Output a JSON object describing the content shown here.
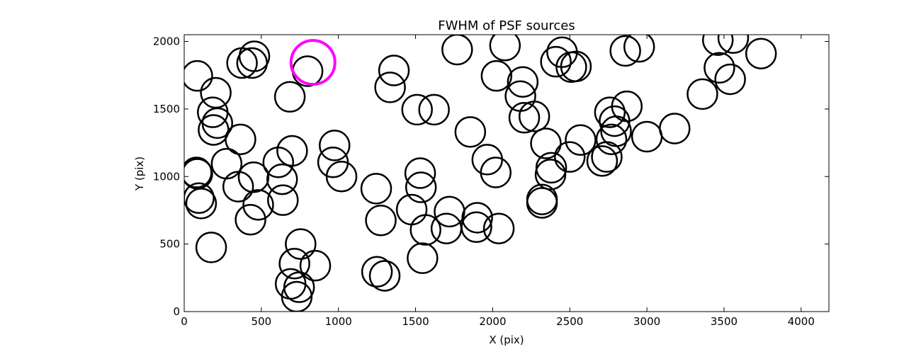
{
  "chart_data": {
    "type": "scatter",
    "title": "FWHM of PSF sources",
    "xlabel": "X (pix)",
    "ylabel": "Y (pix)",
    "xlim": [
      0,
      4180
    ],
    "ylim": [
      0,
      2050
    ],
    "xticks": [
      0,
      500,
      1000,
      1500,
      2000,
      2500,
      3000,
      3500,
      4000
    ],
    "yticks": [
      0,
      500,
      1000,
      1500,
      2000
    ],
    "grid": false,
    "marker": "open-circle",
    "series": [
      {
        "color": "#000000",
        "points": [
          [
            85,
            1745
          ],
          [
            205,
            1620
          ],
          [
            375,
            1840
          ],
          [
            440,
            1840
          ],
          [
            455,
            1890
          ],
          [
            685,
            1590
          ],
          [
            800,
            1780
          ],
          [
            185,
            1475
          ],
          [
            215,
            1395
          ],
          [
            190,
            1345
          ],
          [
            365,
            1275
          ],
          [
            275,
            1095
          ],
          [
            80,
            1030
          ],
          [
            85,
            1020
          ],
          [
            95,
            840
          ],
          [
            110,
            800
          ],
          [
            175,
            475
          ],
          [
            350,
            925
          ],
          [
            450,
            995
          ],
          [
            480,
            790
          ],
          [
            430,
            680
          ],
          [
            610,
            1105
          ],
          [
            635,
            980
          ],
          [
            640,
            825
          ],
          [
            700,
            1190
          ],
          [
            755,
            500
          ],
          [
            715,
            355
          ],
          [
            690,
            205
          ],
          [
            745,
            180
          ],
          [
            730,
            110
          ],
          [
            850,
            340
          ],
          [
            975,
            1230
          ],
          [
            965,
            1105
          ],
          [
            1020,
            1000
          ],
          [
            1245,
            910
          ],
          [
            1275,
            675
          ],
          [
            1250,
            295
          ],
          [
            1300,
            265
          ],
          [
            1335,
            1660
          ],
          [
            1360,
            1785
          ],
          [
            1510,
            1495
          ],
          [
            1530,
            1025
          ],
          [
            1535,
            920
          ],
          [
            1475,
            755
          ],
          [
            1565,
            605
          ],
          [
            1545,
            395
          ],
          [
            1620,
            1495
          ],
          [
            1700,
            615
          ],
          [
            1720,
            740
          ],
          [
            1770,
            1940
          ],
          [
            1855,
            1330
          ],
          [
            1895,
            625
          ],
          [
            1900,
            695
          ],
          [
            1965,
            1125
          ],
          [
            2020,
            1030
          ],
          [
            2025,
            1745
          ],
          [
            2040,
            615
          ],
          [
            2080,
            1970
          ],
          [
            2195,
            1700
          ],
          [
            2180,
            1595
          ],
          [
            2205,
            1435
          ],
          [
            2270,
            1445
          ],
          [
            2320,
            830
          ],
          [
            2320,
            805
          ],
          [
            2345,
            1245
          ],
          [
            2380,
            1065
          ],
          [
            2375,
            1015
          ],
          [
            2410,
            1850
          ],
          [
            2450,
            1920
          ],
          [
            2510,
            1810
          ],
          [
            2540,
            1815
          ],
          [
            2500,
            1145
          ],
          [
            2570,
            1270
          ],
          [
            2710,
            1115
          ],
          [
            2740,
            1145
          ],
          [
            2760,
            1475
          ],
          [
            2790,
            1410
          ],
          [
            2800,
            1335
          ],
          [
            2770,
            1275
          ],
          [
            2870,
            1520
          ],
          [
            2860,
            1930
          ],
          [
            2950,
            1960
          ],
          [
            3000,
            1295
          ],
          [
            3180,
            1355
          ],
          [
            3360,
            1610
          ],
          [
            3460,
            2010
          ],
          [
            3560,
            2025
          ],
          [
            3470,
            1805
          ],
          [
            3540,
            1720
          ],
          [
            3740,
            1910
          ]
        ]
      },
      {
        "color": "#ff00ff",
        "points": [
          [
            835,
            1845
          ]
        ]
      }
    ]
  }
}
